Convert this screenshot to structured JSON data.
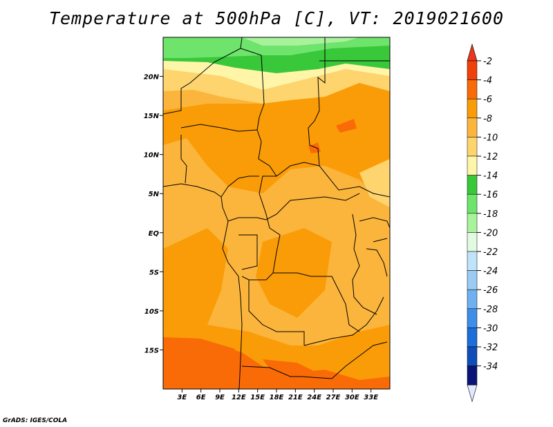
{
  "title": "Temperature at 500hPa [C], VT: 2019021600",
  "credit": "GrADS: IGES/COLA",
  "map": {
    "lon_range": [
      0,
      36
    ],
    "lat_range": [
      -20,
      25
    ],
    "lat_ticks": [
      {
        "value": 20,
        "label": "20N"
      },
      {
        "value": 15,
        "label": "15N"
      },
      {
        "value": 10,
        "label": "10N"
      },
      {
        "value": 5,
        "label": "5N"
      },
      {
        "value": 0,
        "label": "EQ"
      },
      {
        "value": -5,
        "label": "5S"
      },
      {
        "value": -10,
        "label": "10S"
      },
      {
        "value": -15,
        "label": "15S"
      }
    ],
    "lon_ticks": [
      {
        "value": 3,
        "label": "3E"
      },
      {
        "value": 6,
        "label": "6E"
      },
      {
        "value": 9,
        "label": "9E"
      },
      {
        "value": 12,
        "label": "12E"
      },
      {
        "value": 15,
        "label": "15E"
      },
      {
        "value": 18,
        "label": "18E"
      },
      {
        "value": 21,
        "label": "21E"
      },
      {
        "value": 24,
        "label": "24E"
      },
      {
        "value": 27,
        "label": "27E"
      },
      {
        "value": 30,
        "label": "30E"
      },
      {
        "value": 33,
        "label": "33E"
      }
    ]
  },
  "colorbar": {
    "labels": [
      "-2",
      "-4",
      "-6",
      "-8",
      "-10",
      "-12",
      "-14",
      "-16",
      "-18",
      "-20",
      "-22",
      "-24",
      "-26",
      "-28",
      "-30",
      "-32",
      "-34"
    ],
    "colors": [
      "#f0410a",
      "#f96b06",
      "#fa9c07",
      "#fbb53c",
      "#fdd46d",
      "#fff5a8",
      "#38c83a",
      "#6ee46c",
      "#a8f29c",
      "#e2fbe0",
      "#bfe4fa",
      "#9bcbf4",
      "#6fb1f0",
      "#3d8ee8",
      "#1c6ed8",
      "#0f4eb8",
      "#0a1478"
    ],
    "top_color": "#e8381d",
    "bottom_color": "#e2e8ff"
  }
}
